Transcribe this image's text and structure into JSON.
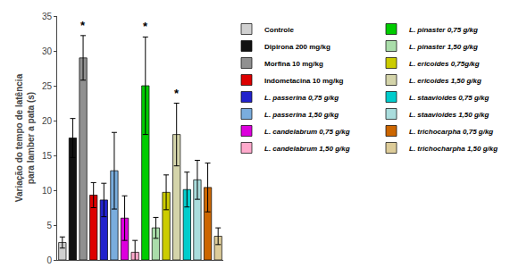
{
  "chart_data": {
    "type": "bar",
    "categories": [
      "Controle",
      "Dipirona 200 mg/kg",
      "Morfina 10 mg/kg",
      "Indometacina 10 mg/kg",
      "L. passerina 0,75 g/kg",
      "L. passerina 1,50 g/kg",
      "L. candelabrum 0,75 g/kg",
      "L. candelabrum 1,50 g/kg",
      "L. pinaster 0,75 g/kg",
      "L. pinaster 1,50 g/kg",
      "L. ericoides 0,75g/kg",
      "L. ericoides 1,50 g/kg",
      "L. staavioides 0,75 g/kg",
      "L. staavioides 1,50 g/kg",
      "L. trichocarpha 0,75 g/kg",
      "L. trichocharpha 1,50 g/kg"
    ],
    "values": [
      2.5,
      17.5,
      29.0,
      9.3,
      8.6,
      12.8,
      6.0,
      1.1,
      25.0,
      4.6,
      9.7,
      18.0,
      10.1,
      11.5,
      10.4,
      3.4
    ],
    "errors": [
      0.8,
      2.8,
      3.2,
      1.8,
      2.4,
      5.5,
      3.2,
      1.7,
      7.0,
      1.5,
      2.5,
      4.5,
      2.5,
      2.8,
      3.5,
      1.2
    ],
    "colors": [
      "#d0d0d0",
      "#111111",
      "#909090",
      "#dd0000",
      "#2222cc",
      "#7aaddd",
      "#dd00dd",
      "#ffaacc",
      "#00cc00",
      "#aaddaa",
      "#cccc00",
      "#d4d4aa",
      "#00cccc",
      "#aadddd",
      "#cc6600",
      "#ddcc99"
    ],
    "ylabel": "Variação do tempo de latência\npara lamber a pata (s)",
    "ylim": [
      0,
      35
    ],
    "yticks": [
      0,
      5,
      10,
      15,
      20,
      25,
      30,
      35
    ],
    "grid": false,
    "legend": "right",
    "tick_labels": "y",
    "annotations": [
      {
        "category": "Morfina 10 mg/kg",
        "text": "*"
      },
      {
        "category": "L. pinaster 0,75 g/kg",
        "text": "*"
      },
      {
        "category": "L. ericoides 1,50 g/kg",
        "text": "*"
      }
    ]
  }
}
